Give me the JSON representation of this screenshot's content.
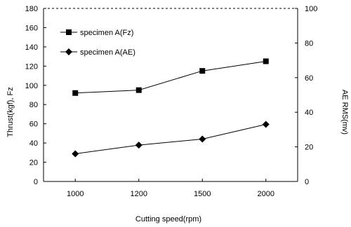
{
  "chart_data": {
    "type": "line",
    "categories": [
      "1000",
      "1200",
      "1500",
      "2000"
    ],
    "xlabel": "Cutting speed(rpm)",
    "ylabel_left": "Thrust(kgf), Fz",
    "ylabel_right": "AE RMS(mv)",
    "ylim_left": [
      0,
      180
    ],
    "yticks_left": [
      0,
      20,
      40,
      60,
      80,
      100,
      120,
      140,
      160,
      180
    ],
    "ylim_right": [
      0,
      100
    ],
    "yticks_right": [
      0,
      20,
      40,
      60,
      80,
      100
    ],
    "grid": false,
    "legend_position": "top-left",
    "series": [
      {
        "name": "specimen A(Fz)",
        "axis": "left",
        "marker": "square",
        "values": [
          92,
          95,
          115,
          125
        ]
      },
      {
        "name": "specimen A(AE)",
        "axis": "right",
        "marker": "diamond",
        "values": [
          16,
          21,
          24.5,
          33
        ]
      }
    ],
    "colors": {
      "line": "#000000",
      "frame": "#000000"
    }
  }
}
